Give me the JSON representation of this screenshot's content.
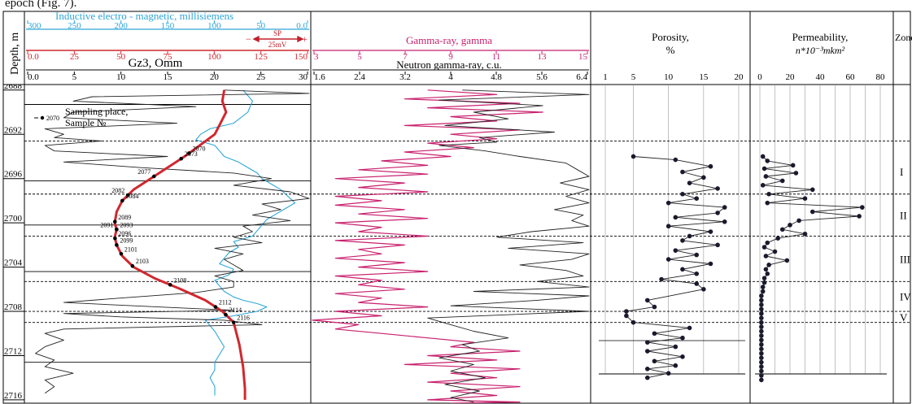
{
  "top_fragment": "epoch (Fig. 7).",
  "depth_title": "Depth, m",
  "depth_ticks": [
    {
      "label": "2688",
      "depth": 2688
    },
    {
      "label": "2692",
      "depth": 2692
    },
    {
      "label": "2696",
      "depth": 2696
    },
    {
      "label": "2700",
      "depth": 2700
    },
    {
      "label": "2704",
      "depth": 2704
    },
    {
      "label": "2708",
      "depth": 2708
    },
    {
      "label": "2712",
      "depth": 2712
    },
    {
      "label": "2716",
      "depth": 2716
    }
  ],
  "depth_range": [
    2687.5,
    2716.3
  ],
  "track1": {
    "inductive_label": "Inductive  electro - magnetic,  millisiemens",
    "inductive_ticks": [
      "300",
      "250",
      "200",
      "150",
      "100",
      "50",
      "0.0"
    ],
    "sp_label": "SP",
    "sp_scale": "25mV",
    "sp_minus": "−",
    "sp_plus": "+",
    "gz_ticks": [
      "0.0",
      "25",
      "50",
      "75",
      "100",
      "125",
      "150"
    ],
    "gz_label": "Gz3, Omm",
    "bottom_ticks": [
      "0.0",
      "5",
      "10",
      "15",
      "20",
      "25",
      "30"
    ],
    "legend_sample_no": "2070",
    "legend_line1": "Sampling place,",
    "legend_line2": "Sample №"
  },
  "track2": {
    "gamma_label": "Gamma-ray, gamma",
    "gamma_ticks": [
      "3",
      "5",
      "7",
      "9",
      "11",
      "13",
      "15"
    ],
    "neutron_label": "Neutron gamma-ray, c.u.",
    "neutron_ticks": [
      "1.6",
      "2.4",
      "3.2",
      "4",
      "4.8",
      "5.6",
      "6.4"
    ]
  },
  "porosity": {
    "title_line1": "Porosity,",
    "title_line2": "%",
    "ticks": [
      "1",
      "5",
      "10",
      "15",
      "20"
    ]
  },
  "permeability": {
    "title_line1": "Permeability,",
    "title_line2": "n*10⁻³mkm²",
    "ticks": [
      "0",
      "20",
      "40",
      "60",
      "80"
    ]
  },
  "zones": {
    "title": "Zone",
    "items": [
      {
        "label": "I",
        "top": 2693.3,
        "bottom": 2697.4
      },
      {
        "label": "II",
        "top": 2697.4,
        "bottom": 2701.2
      },
      {
        "label": "III",
        "top": 2701.2,
        "bottom": 2705.3
      },
      {
        "label": "IV",
        "top": 2705.3,
        "bottom": 2708.0
      },
      {
        "label": "V",
        "top": 2708.0,
        "bottom": 2709.0
      }
    ]
  },
  "boundaries": {
    "dashed": [
      2692.6,
      2697.4,
      2701.2,
      2705.3,
      2708.0,
      2709.0
    ],
    "solid": [
      2689.3,
      2696.2,
      2700.2,
      2704.4,
      2712.6
    ]
  },
  "samples": [
    {
      "no": "2070",
      "depth": 2693.7
    },
    {
      "no": "2073",
      "depth": 2694.2
    },
    {
      "no": "2077",
      "depth": 2695.8
    },
    {
      "no": "2082",
      "depth": 2697.5
    },
    {
      "no": "2084",
      "depth": 2698.0
    },
    {
      "no": "2089",
      "depth": 2699.9
    },
    {
      "no": "2091",
      "depth": 2700.6
    },
    {
      "no": "2093",
      "depth": 2700.6
    },
    {
      "no": "2096",
      "depth": 2701.4
    },
    {
      "no": "2099",
      "depth": 2702.0
    },
    {
      "no": "2101",
      "depth": 2702.8
    },
    {
      "no": "2103",
      "depth": 2703.9
    },
    {
      "no": "2108",
      "depth": 2705.6
    },
    {
      "no": "2112",
      "depth": 2707.6
    },
    {
      "no": "2114",
      "depth": 2708.3
    },
    {
      "no": "2116",
      "depth": 2709.0
    }
  ],
  "chart_data": [
    {
      "type": "line",
      "title": "Porosity, %",
      "xlabel": "Porosity, %",
      "ylabel": "Depth, m",
      "xlim": [
        1,
        20
      ],
      "ylim": [
        2716.3,
        2687.5
      ],
      "series": [
        {
          "x": [
            5,
            11,
            16,
            12,
            15,
            13,
            17,
            12,
            14,
            10,
            18,
            17,
            11,
            18,
            10,
            16,
            13,
            12,
            17,
            11,
            14,
            10,
            16,
            12,
            14,
            9,
            14,
            15,
            7,
            8,
            4,
            4,
            5,
            13,
            8,
            12,
            7,
            11,
            7,
            12,
            8,
            11,
            7,
            10,
            7
          ],
          "y": [
            2694.0,
            2694.3,
            2694.9,
            2695.4,
            2695.9,
            2696.4,
            2696.9,
            2697.4,
            2697.8,
            2698.2,
            2698.6,
            2699.1,
            2699.5,
            2699.9,
            2700.3,
            2700.8,
            2701.2,
            2701.6,
            2702.0,
            2702.5,
            2702.9,
            2703.3,
            2703.7,
            2704.2,
            2704.6,
            2705.1,
            2705.5,
            2706.0,
            2707.0,
            2707.6,
            2708.0,
            2708.4,
            2709.0,
            2709.5,
            2710.0,
            2710.4,
            2710.8,
            2711.2,
            2711.6,
            2712.1,
            2712.5,
            2712.9,
            2713.2,
            2713.6,
            2714.0
          ]
        }
      ]
    },
    {
      "type": "line",
      "title": "Permeability, n*10⁻³mkm²",
      "xlabel": "Permeability, n*10⁻³mkm²",
      "ylabel": "Depth, m",
      "xlim": [
        0,
        80
      ],
      "ylim": [
        2716.3,
        2687.5
      ],
      "series": [
        {
          "x": [
            2,
            5,
            22,
            3,
            24,
            4,
            15,
            2,
            35,
            6,
            30,
            5,
            68,
            35,
            66,
            26,
            20,
            15,
            30,
            12,
            5,
            3,
            10,
            4,
            18,
            6,
            4,
            5,
            3,
            3,
            2,
            2,
            1,
            1,
            1,
            1,
            1,
            1,
            1,
            1,
            1,
            1,
            1,
            1,
            1,
            1,
            1,
            1,
            1,
            1,
            1,
            1
          ],
          "y": [
            2694.0,
            2694.4,
            2694.8,
            2695.1,
            2695.5,
            2695.8,
            2696.2,
            2696.6,
            2697.0,
            2697.4,
            2697.8,
            2698.2,
            2698.6,
            2699.0,
            2699.4,
            2699.8,
            2700.2,
            2700.6,
            2701.0,
            2701.4,
            2701.8,
            2702.2,
            2702.6,
            2703.0,
            2703.4,
            2703.8,
            2704.2,
            2704.6,
            2705.0,
            2705.4,
            2705.8,
            2706.2,
            2706.6,
            2707.0,
            2707.4,
            2707.8,
            2708.2,
            2708.6,
            2709.0,
            2709.4,
            2709.8,
            2710.2,
            2710.6,
            2711.0,
            2711.4,
            2711.8,
            2712.2,
            2712.6,
            2713.0,
            2713.4,
            2713.8,
            2714.2
          ]
        }
      ]
    },
    {
      "type": "line",
      "title": "Gz3, Omm",
      "xlabel": "Gz3, Omm",
      "ylabel": "Depth, m",
      "xlim": [
        0,
        30
      ],
      "ylim": [
        2716.3,
        2687.5
      ],
      "series": [
        {
          "x": [
            21,
            30,
            7,
            5,
            18,
            5,
            4,
            16,
            2,
            4,
            3,
            8,
            2,
            3,
            15,
            4,
            12,
            22,
            26,
            22,
            28,
            30,
            25,
            27,
            24,
            28,
            23,
            24,
            22,
            25,
            20,
            23,
            21,
            22,
            23,
            20,
            22,
            22,
            18,
            10,
            4,
            14,
            22,
            4,
            10,
            21,
            25,
            4,
            2,
            4,
            2,
            1,
            3,
            2,
            5,
            2,
            3,
            2
          ],
          "y": [
            2688.0,
            2688.3,
            2688.6,
            2689.0,
            2689.5,
            2690.0,
            2690.5,
            2691.0,
            2691.5,
            2692.0,
            2692.3,
            2692.6,
            2693.0,
            2693.5,
            2694.0,
            2694.5,
            2695.0,
            2695.5,
            2696.0,
            2696.6,
            2697.2,
            2697.8,
            2698.3,
            2698.8,
            2699.3,
            2699.8,
            2700.3,
            2700.8,
            2701.3,
            2701.8,
            2702.3,
            2702.8,
            2703.3,
            2703.8,
            2704.3,
            2704.8,
            2705.3,
            2705.8,
            2706.3,
            2706.8,
            2707.2,
            2707.6,
            2707.9,
            2708.2,
            2708.5,
            2708.8,
            2709.2,
            2709.6,
            2710.0,
            2710.6,
            2711.2,
            2711.8,
            2712.4,
            2713.0,
            2713.6,
            2714.2,
            2714.8,
            2715.4
          ]
        }
      ]
    },
    {
      "type": "line",
      "title": "Inductive electro - magnetic, millisiemens",
      "xlabel": "Inductive electro - magnetic, millisiemens",
      "ylabel": "Depth, m",
      "xlim": [
        300,
        0
      ],
      "ylim": [
        2716.3,
        2687.5
      ],
      "series": [
        {
          "x": [
            70,
            60,
            65,
            80,
            105,
            115,
            120,
            100,
            95,
            90,
            75,
            65,
            55,
            50,
            40,
            30,
            25,
            20,
            15,
            25,
            35,
            45,
            50,
            55,
            60,
            80,
            75,
            85,
            90,
            95,
            80,
            85,
            100,
            95,
            90,
            80,
            70,
            55,
            45,
            55,
            80,
            110,
            105,
            100,
            95,
            90,
            95,
            100,
            100,
            105,
            100,
            100
          ],
          "y": [
            2688.0,
            2689.0,
            2690.0,
            2691.0,
            2691.5,
            2692.0,
            2692.5,
            2693.0,
            2693.5,
            2694.0,
            2694.5,
            2695.0,
            2695.5,
            2696.0,
            2696.5,
            2697.0,
            2697.4,
            2697.8,
            2698.2,
            2698.7,
            2699.2,
            2699.7,
            2700.2,
            2700.7,
            2701.2,
            2701.7,
            2702.2,
            2702.7,
            2703.2,
            2703.7,
            2704.2,
            2704.7,
            2705.2,
            2705.7,
            2706.2,
            2706.7,
            2707.0,
            2707.3,
            2707.6,
            2708.0,
            2708.4,
            2708.8,
            2709.3,
            2709.8,
            2710.5,
            2711.2,
            2711.9,
            2712.6,
            2713.3,
            2714.0,
            2714.8,
            2715.6
          ]
        }
      ]
    },
    {
      "type": "line",
      "title": "SP",
      "xlabel": "SP",
      "ylabel": "Depth, m",
      "xlim": [
        0,
        150
      ],
      "ylim": [
        2716.3,
        2687.5
      ],
      "series": [
        {
          "x": [
            105,
            104,
            106,
            103,
            100,
            92,
            84,
            75,
            66,
            57,
            51,
            48,
            47,
            48,
            47,
            48,
            51,
            57,
            68,
            82,
            95,
            104,
            110,
            113,
            115,
            116,
            116
          ],
          "y": [
            2688.0,
            2689.0,
            2690.0,
            2691.0,
            2692.0,
            2693.0,
            2694.0,
            2695.0,
            2696.0,
            2697.0,
            2698.0,
            2699.0,
            2700.0,
            2700.6,
            2701.3,
            2702.0,
            2703.0,
            2704.0,
            2705.0,
            2706.0,
            2707.0,
            2708.0,
            2709.0,
            2711.0,
            2713.0,
            2715.0,
            2716.0
          ]
        }
      ]
    },
    {
      "type": "line",
      "title": "Gamma-ray, gamma",
      "xlabel": "Gamma-ray, gamma",
      "ylabel": "Depth, m",
      "xlim": [
        3,
        15
      ],
      "ylim": [
        2716.3,
        2687.5
      ],
      "series": [
        {
          "x": [
            8,
            11,
            7,
            12,
            8,
            13,
            9,
            11,
            7,
            12,
            9,
            11,
            8,
            10,
            7,
            9,
            6,
            8,
            5,
            8,
            4,
            7,
            5,
            8,
            4,
            6,
            4,
            7,
            5,
            8,
            4,
            6,
            5,
            8,
            4,
            7,
            5,
            6,
            4,
            7,
            5,
            8,
            4,
            6,
            5,
            7,
            4,
            6,
            5,
            8,
            4,
            6,
            3,
            5,
            4,
            6,
            8,
            10,
            9,
            12,
            8,
            11,
            7,
            12,
            9,
            11,
            8,
            12,
            9,
            11,
            8,
            12,
            9,
            10
          ],
          "y": [
            2688.0,
            2688.4,
            2688.8,
            2689.2,
            2689.6,
            2690.0,
            2690.4,
            2690.8,
            2691.2,
            2691.6,
            2692.0,
            2692.4,
            2692.8,
            2693.2,
            2693.6,
            2694.0,
            2694.4,
            2694.8,
            2695.2,
            2695.6,
            2696.0,
            2696.4,
            2696.8,
            2697.2,
            2697.6,
            2698.0,
            2698.4,
            2698.8,
            2699.2,
            2699.6,
            2700.0,
            2700.4,
            2700.8,
            2701.2,
            2701.6,
            2702.0,
            2702.4,
            2702.8,
            2703.2,
            2703.6,
            2704.0,
            2704.4,
            2704.8,
            2705.2,
            2705.6,
            2706.0,
            2706.4,
            2706.8,
            2707.2,
            2707.6,
            2708.0,
            2708.4,
            2708.8,
            2709.2,
            2709.6,
            2710.0,
            2710.4,
            2710.8,
            2711.2,
            2711.6,
            2712.0,
            2712.4,
            2712.8,
            2713.2,
            2713.6,
            2714.0,
            2714.4,
            2714.8,
            2715.2,
            2715.6,
            2716.0,
            2716.2,
            2716.3,
            2716.3
          ]
        }
      ]
    },
    {
      "type": "line",
      "title": "Neutron gamma-ray, c.u.",
      "xlabel": "Neutron gamma-ray, c.u.",
      "ylabel": "Depth, m",
      "xlim": [
        1.6,
        6.4
      ],
      "ylim": [
        2716.3,
        2687.5
      ],
      "series": [
        {
          "x": [
            4.2,
            6.4,
            3.8,
            5.6,
            4.4,
            5.0,
            3.9,
            5.8,
            4.5,
            4.8,
            3.8,
            4.6,
            5.2,
            6.0,
            6.2,
            6.4,
            5.9,
            6.4,
            6.0,
            6.4,
            5.8,
            6.3,
            6.1,
            6.4,
            5.4,
            4.8,
            6.3,
            5.0,
            6.4,
            6.1,
            5.2,
            6.0,
            6.3,
            5.5,
            6.4,
            4.4,
            6.4,
            5.5,
            4.0,
            6.4,
            3.6,
            4.0,
            4.4,
            5.0,
            4.2,
            4.5,
            3.8,
            4.4,
            4.0,
            4.6,
            3.9,
            4.5,
            4.0,
            4.4
          ],
          "y": [
            2688.0,
            2688.4,
            2688.9,
            2689.4,
            2690.0,
            2690.6,
            2691.2,
            2691.8,
            2692.3,
            2692.7,
            2693.0,
            2693.5,
            2694.0,
            2694.6,
            2695.2,
            2695.8,
            2696.4,
            2697.0,
            2697.6,
            2698.2,
            2698.8,
            2699.3,
            2699.8,
            2700.3,
            2700.8,
            2701.3,
            2701.8,
            2702.3,
            2702.8,
            2703.3,
            2703.8,
            2704.3,
            2704.8,
            2705.3,
            2705.8,
            2706.2,
            2706.6,
            2707.0,
            2707.5,
            2708.0,
            2708.6,
            2709.2,
            2709.8,
            2710.4,
            2711.0,
            2711.6,
            2712.2,
            2712.8,
            2713.4,
            2714.0,
            2714.6,
            2715.2,
            2715.8,
            2716.2
          ]
        }
      ]
    }
  ]
}
